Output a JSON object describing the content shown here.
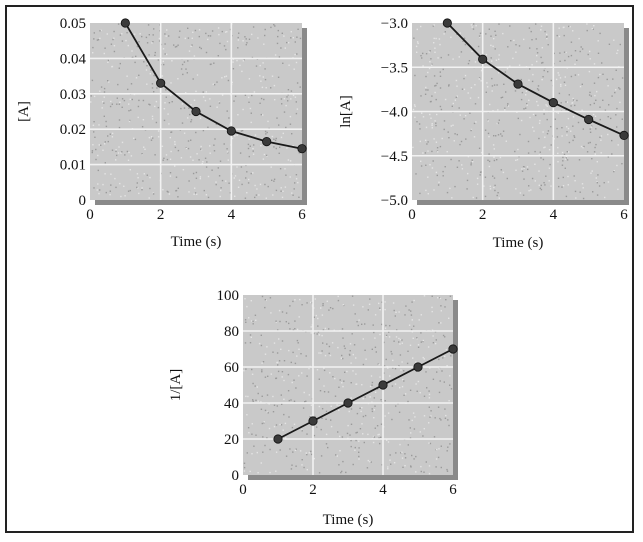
{
  "colors": {
    "plot_bg": "#c9c9c9",
    "plot_shadow": "#8a8a8a",
    "grid": "#f2f2f2",
    "line": "#1a1a1a",
    "marker": "#3a3a3a"
  },
  "chart_data": [
    {
      "type": "line",
      "title": "",
      "xlabel": "Time (s)",
      "ylabel": "[A]",
      "xlim": [
        0,
        6
      ],
      "ylim": [
        0,
        0.05
      ],
      "xticks": [
        "0",
        "2",
        "4",
        "6"
      ],
      "yticks": [
        "0",
        "0.01",
        "0.02",
        "0.03",
        "0.04",
        "0.05"
      ],
      "grid": true,
      "series": [
        {
          "x": [
            1,
            2,
            3,
            4,
            5,
            6
          ],
          "y": [
            0.05,
            0.033,
            0.025,
            0.0195,
            0.0165,
            0.0145
          ]
        }
      ]
    },
    {
      "type": "line",
      "title": "",
      "xlabel": "Time (s)",
      "ylabel": "ln[A]",
      "xlim": [
        0,
        6
      ],
      "ylim": [
        -5.0,
        -3.0
      ],
      "xticks": [
        "0",
        "2",
        "4",
        "6"
      ],
      "yticks": [
        "−3.0",
        "−3.5",
        "−4.0",
        "−4.5",
        "−5.0"
      ],
      "grid": true,
      "series": [
        {
          "x": [
            1,
            2,
            3,
            4,
            5,
            6
          ],
          "y": [
            -3.0,
            -3.41,
            -3.69,
            -3.9,
            -4.09,
            -4.27
          ]
        }
      ]
    },
    {
      "type": "line",
      "title": "",
      "xlabel": "Time (s)",
      "ylabel": "1/[A]",
      "xlim": [
        0,
        6
      ],
      "ylim": [
        0,
        100
      ],
      "xticks": [
        "0",
        "2",
        "4",
        "6"
      ],
      "yticks": [
        "0",
        "20",
        "40",
        "60",
        "80",
        "100"
      ],
      "grid": true,
      "series": [
        {
          "x": [
            1,
            2,
            3,
            4,
            5,
            6
          ],
          "y": [
            20,
            30,
            40,
            50,
            60,
            70
          ]
        }
      ]
    }
  ]
}
